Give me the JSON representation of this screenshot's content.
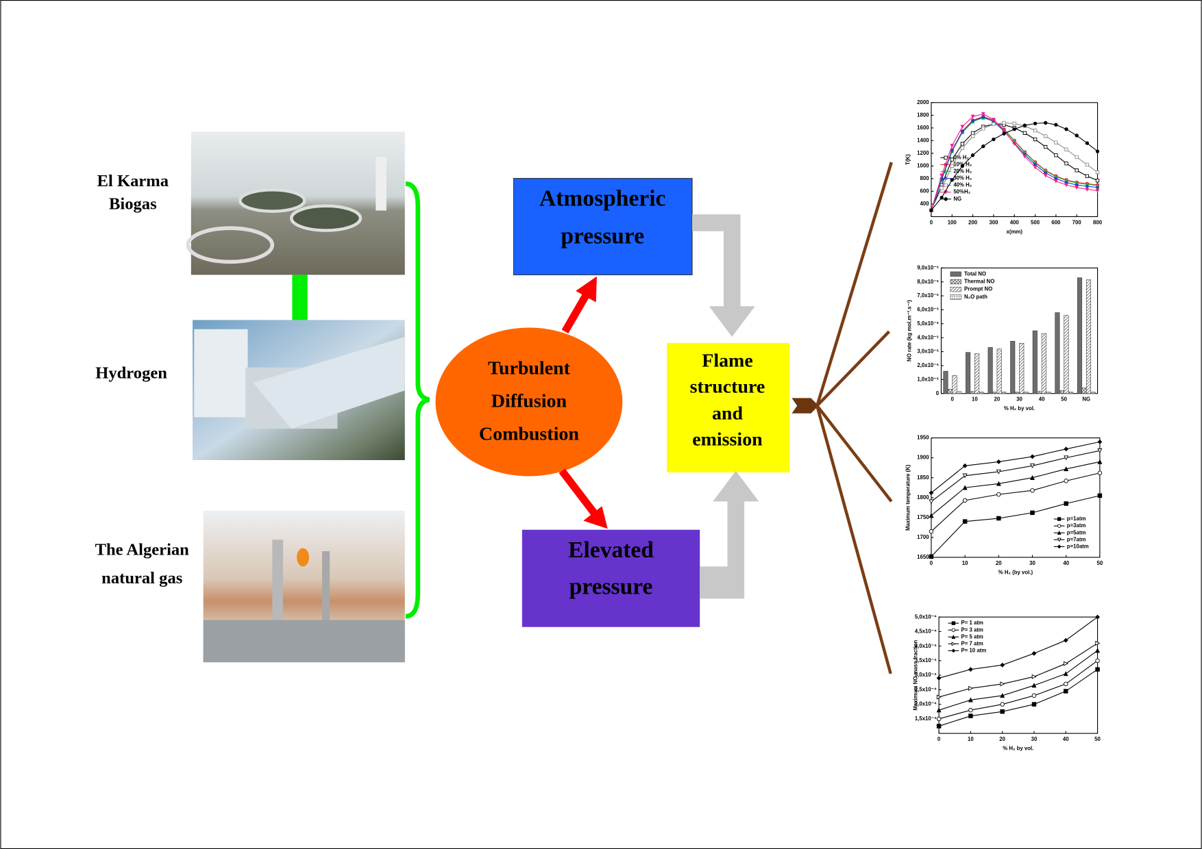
{
  "sources": [
    {
      "lines": [
        "El Karma",
        "Biogas"
      ]
    },
    {
      "lines": [
        "Hydrogen"
      ]
    },
    {
      "lines": [
        "The  Algerian",
        "natural gas"
      ]
    }
  ],
  "center": {
    "lines": [
      "Turbulent",
      "Diffusion",
      "Combustion"
    ]
  },
  "branches": [
    {
      "lines": [
        "Atmospheric",
        "pressure"
      ]
    },
    {
      "lines": [
        "Elevated",
        "pressure"
      ]
    }
  ],
  "result": {
    "lines": [
      "Flame",
      "structure",
      "and",
      "emission"
    ]
  },
  "chart_data": [
    {
      "type": "line",
      "xlabel": "x(mm)",
      "ylabel": "T(K)",
      "legend": "middle-left",
      "x": [
        0,
        50,
        100,
        150,
        200,
        250,
        300,
        350,
        400,
        450,
        500,
        550,
        600,
        650,
        700,
        750,
        800
      ],
      "xlim": [
        0,
        800
      ],
      "xticks": [
        0,
        100,
        200,
        300,
        400,
        500,
        600,
        700,
        800
      ],
      "ylim": [
        200,
        2000
      ],
      "yticks": [
        400,
        600,
        800,
        1000,
        1200,
        1400,
        1600,
        1800,
        2000
      ],
      "series": [
        {
          "name": "0% H₂",
          "color": "#000000",
          "marker": "square",
          "filled": false,
          "values": [
            300,
            700,
            1100,
            1350,
            1520,
            1620,
            1660,
            1650,
            1600,
            1520,
            1420,
            1300,
            1170,
            1040,
            930,
            840,
            770
          ]
        },
        {
          "name": "10% H₂",
          "color": "#e8202a",
          "marker": "circle",
          "filled": true,
          "values": [
            300,
            800,
            1250,
            1550,
            1720,
            1780,
            1720,
            1580,
            1400,
            1220,
            1060,
            930,
            840,
            780,
            740,
            720,
            700
          ]
        },
        {
          "name": "20% H₂",
          "color": "#22c43a",
          "marker": "triangle",
          "filled": true,
          "values": [
            300,
            780,
            1230,
            1530,
            1700,
            1760,
            1710,
            1570,
            1390,
            1210,
            1050,
            920,
            830,
            770,
            730,
            710,
            690
          ]
        },
        {
          "name": "30% H₂",
          "color": "#1f3fd6",
          "marker": "diamond",
          "filled": true,
          "values": [
            300,
            790,
            1240,
            1540,
            1710,
            1770,
            1700,
            1550,
            1360,
            1180,
            1020,
            890,
            800,
            740,
            700,
            680,
            660
          ]
        },
        {
          "name": "40% H₂",
          "color": "#8c8c8c",
          "marker": "square",
          "filled": false,
          "values": [
            300,
            650,
            1000,
            1280,
            1470,
            1590,
            1660,
            1680,
            1670,
            1630,
            1560,
            1470,
            1370,
            1260,
            1140,
            1020,
            900
          ]
        },
        {
          "name": "50%H₂",
          "color": "#f0208c",
          "marker": "triangle-down",
          "filled": true,
          "values": [
            300,
            850,
            1320,
            1620,
            1780,
            1820,
            1730,
            1560,
            1350,
            1150,
            980,
            850,
            760,
            700,
            660,
            630,
            610
          ]
        },
        {
          "name": "NG",
          "color": "#000000",
          "marker": "circle",
          "filled": true,
          "values": [
            300,
            500,
            780,
            1000,
            1170,
            1310,
            1420,
            1510,
            1580,
            1640,
            1670,
            1680,
            1650,
            1580,
            1480,
            1360,
            1230
          ]
        }
      ]
    },
    {
      "type": "bar",
      "xlabel": "% H₂ by vol.",
      "ylabel": "NO rate (kg mol.m⁻³.s⁻¹)",
      "legend": "upper-left",
      "categories": [
        "0",
        "10",
        "20",
        "30",
        "40",
        "50",
        "NG"
      ],
      "ylim": [
        0,
        9e-05
      ],
      "yticks": [
        0,
        {
          "value": 1e-05,
          "label": "1,0x10⁻⁵"
        },
        {
          "value": 2e-05,
          "label": "2,0x10⁻⁵"
        },
        {
          "value": 3e-05,
          "label": "3,0x10⁻⁵"
        },
        {
          "value": 4e-05,
          "label": "4,0x10⁻⁵"
        },
        {
          "value": 5e-05,
          "label": "5,0x10⁻⁵"
        },
        {
          "value": 6e-05,
          "label": "6,0x10⁻⁵"
        },
        {
          "value": 7e-05,
          "label": "7,0x10⁻⁵"
        },
        {
          "value": 8e-05,
          "label": "8,0x10⁻⁵"
        },
        {
          "value": 9e-05,
          "label": "9,0x10⁻⁵"
        }
      ],
      "series": [
        {
          "name": "Total NO",
          "color": "#6e6e6e",
          "pattern": "solid",
          "values": [
            1.6e-05,
            2.95e-05,
            3.3e-05,
            3.75e-05,
            4.5e-05,
            5.8e-05,
            8.3e-05
          ]
        },
        {
          "name": "Thermal NO",
          "color": "#333333",
          "pattern": "cross",
          "values": [
            3e-06,
            1.5e-06,
            1e-06,
            1e-06,
            1.5e-06,
            2e-06,
            4e-06
          ]
        },
        {
          "name": "Prompt NO",
          "color": "#333333",
          "pattern": "diagonal",
          "values": [
            1.3e-05,
            2.85e-05,
            3.2e-05,
            3.6e-05,
            4.3e-05,
            5.6e-05,
            8.15e-05
          ]
        },
        {
          "name": "N₂O path",
          "color": "#333333",
          "pattern": "grid",
          "values": [
            1.5e-06,
            1e-06,
            1e-06,
            1e-06,
            1e-06,
            1e-06,
            1e-06
          ]
        }
      ]
    },
    {
      "type": "line",
      "xlabel": "% H₂ (by vol.)",
      "ylabel": "Maximum temperature (K)",
      "legend": "lower-right",
      "x": [
        0,
        10,
        20,
        30,
        40,
        50
      ],
      "xlim": [
        0,
        50
      ],
      "xticks": [
        0,
        10,
        20,
        30,
        40,
        50
      ],
      "ylim": [
        1650,
        1950
      ],
      "yticks": [
        1650,
        1700,
        1750,
        1800,
        1850,
        1900,
        1950
      ],
      "series": [
        {
          "name": "p=1atm",
          "color": "#000000",
          "marker": "square",
          "filled": true,
          "values": [
            1652,
            1740,
            1748,
            1762,
            1785,
            1805
          ]
        },
        {
          "name": "p=3atm",
          "color": "#000000",
          "marker": "circle",
          "filled": false,
          "values": [
            1715,
            1793,
            1808,
            1818,
            1842,
            1862
          ]
        },
        {
          "name": "p=5atm",
          "color": "#000000",
          "marker": "triangle",
          "filled": true,
          "values": [
            1755,
            1825,
            1835,
            1850,
            1872,
            1890
          ]
        },
        {
          "name": "p=7atm",
          "color": "#000000",
          "marker": "triangle-down",
          "filled": false,
          "values": [
            1790,
            1855,
            1865,
            1880,
            1900,
            1918
          ]
        },
        {
          "name": "p=10atm",
          "color": "#000000",
          "marker": "diamond",
          "filled": true,
          "values": [
            1812,
            1880,
            1890,
            1903,
            1922,
            1940
          ]
        }
      ]
    },
    {
      "type": "line",
      "xlabel": "% H₂ by vol.",
      "ylabel": "Maximum NO mass fraction",
      "legend": "upper-left",
      "x": [
        0,
        10,
        20,
        30,
        40,
        50
      ],
      "xlim": [
        0,
        50
      ],
      "xticks": [
        0,
        10,
        20,
        30,
        40,
        50
      ],
      "ylim": [
        0.0001,
        0.0005
      ],
      "yticks": [
        {
          "value": 0.00015,
          "label": "1,5x10⁻⁴"
        },
        {
          "value": 0.0002,
          "label": "2,0x10⁻⁴"
        },
        {
          "value": 0.00025,
          "label": "2,5x10⁻⁴"
        },
        {
          "value": 0.0003,
          "label": "3,0x10⁻⁴"
        },
        {
          "value": 0.00035,
          "label": "3,5x10⁻⁴"
        },
        {
          "value": 0.0004,
          "label": "4,0x10⁻⁴"
        },
        {
          "value": 0.00045,
          "label": "4,5x10⁻⁴"
        },
        {
          "value": 0.0005,
          "label": "5,0x10⁻⁴"
        }
      ],
      "series": [
        {
          "name": "P= 1 atm",
          "color": "#000000",
          "marker": "square",
          "filled": true,
          "values": [
            0.000125,
            0.00016,
            0.000175,
            0.0002,
            0.000245,
            0.00032
          ]
        },
        {
          "name": "P= 3 atm",
          "color": "#000000",
          "marker": "circle",
          "filled": false,
          "values": [
            0.00015,
            0.00018,
            0.0002,
            0.00023,
            0.00027,
            0.00035
          ]
        },
        {
          "name": "P= 5 atm",
          "color": "#000000",
          "marker": "triangle",
          "filled": true,
          "values": [
            0.00018,
            0.000215,
            0.00023,
            0.000265,
            0.000305,
            0.000385
          ]
        },
        {
          "name": "P= 7 atm",
          "color": "#000000",
          "marker": "triangle-right",
          "filled": false,
          "values": [
            0.000225,
            0.000255,
            0.00027,
            0.000295,
            0.00034,
            0.00041
          ]
        },
        {
          "name": "P= 10 atm",
          "color": "#000000",
          "marker": "diamond",
          "filled": true,
          "values": [
            0.00029,
            0.00032,
            0.000335,
            0.000375,
            0.00042,
            0.0005
          ]
        }
      ]
    }
  ]
}
